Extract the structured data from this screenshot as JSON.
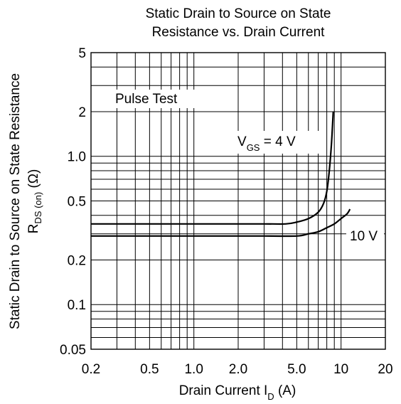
{
  "chart_data": {
    "type": "line",
    "title_lines": [
      "Static Drain to Source on State",
      "Resistance vs. Drain Current"
    ],
    "xlabel": {
      "main": "Drain Current  I",
      "sub": "D",
      "unit": "  (A)"
    },
    "ylabel": {
      "line1": "Static Drain to Source on State Resistance",
      "line2_main": "R",
      "line2_sub": "DS (on)",
      "line2_unit": "  (Ω)"
    },
    "x_scale": "log",
    "y_scale": "log",
    "xlim": [
      0.2,
      20
    ],
    "ylim": [
      0.05,
      5
    ],
    "x_ticks": [
      {
        "value": 0.2,
        "label": "0.2"
      },
      {
        "value": 0.5,
        "label": "0.5"
      },
      {
        "value": 1.0,
        "label": "1.0"
      },
      {
        "value": 2.0,
        "label": "2.0"
      },
      {
        "value": 5.0,
        "label": "5.0"
      },
      {
        "value": 10,
        "label": "10"
      },
      {
        "value": 20,
        "label": "20"
      }
    ],
    "y_ticks": [
      {
        "value": 0.05,
        "label": "0.05"
      },
      {
        "value": 0.1,
        "label": "0.1"
      },
      {
        "value": 0.2,
        "label": "0.2"
      },
      {
        "value": 0.5,
        "label": "0.5"
      },
      {
        "value": 1.0,
        "label": "1.0"
      },
      {
        "value": 2,
        "label": "2"
      },
      {
        "value": 5,
        "label": "5"
      }
    ],
    "grid": true,
    "x_gridlines": [
      0.2,
      0.3,
      0.4,
      0.5,
      0.6,
      0.7,
      0.8,
      0.9,
      1,
      2,
      3,
      4,
      5,
      6,
      7,
      8,
      9,
      10,
      20
    ],
    "y_gridlines": [
      0.05,
      0.06,
      0.07,
      0.08,
      0.09,
      0.1,
      0.2,
      0.3,
      0.4,
      0.5,
      0.6,
      0.7,
      0.8,
      0.9,
      1,
      2,
      3,
      4,
      5
    ],
    "annotations": {
      "pulse_test": "Pulse Test",
      "vgs_4": {
        "main": "V",
        "sub": "GS",
        "rest": " = 4 V"
      },
      "vgs_10": "10 V"
    },
    "series": [
      {
        "x": [
          0.2,
          1.0,
          3.0,
          4.2,
          5.0,
          6.0,
          7.0,
          7.6,
          8.0,
          8.3,
          8.6,
          8.85
        ],
        "y": [
          0.35,
          0.35,
          0.35,
          0.35,
          0.36,
          0.38,
          0.42,
          0.48,
          0.58,
          0.78,
          1.2,
          2.0
        ]
      },
      {
        "x": [
          0.2,
          1.0,
          3.0,
          5.0,
          6.0,
          7.0,
          8.0,
          9.0,
          10.0,
          11.0,
          11.5
        ],
        "y": [
          0.29,
          0.29,
          0.29,
          0.29,
          0.3,
          0.31,
          0.33,
          0.35,
          0.38,
          0.41,
          0.44
        ]
      }
    ]
  }
}
